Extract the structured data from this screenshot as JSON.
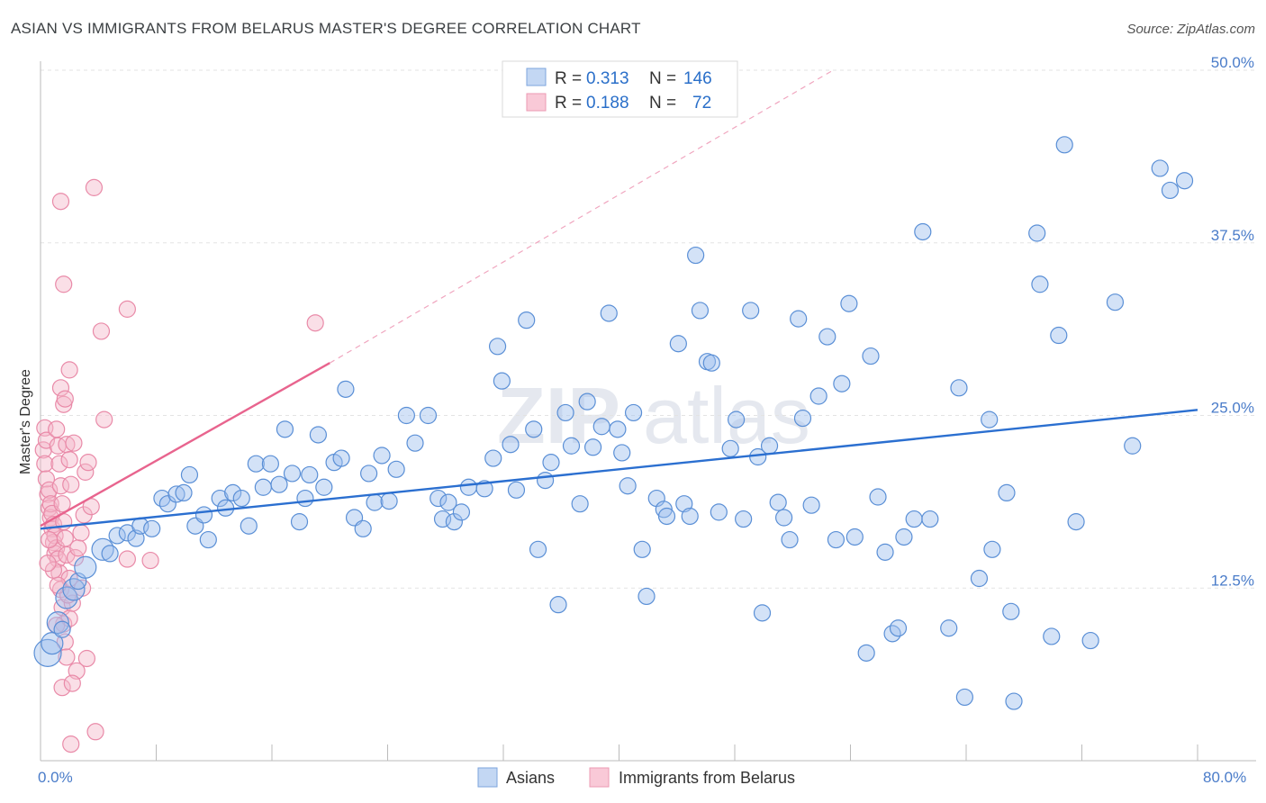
{
  "title": "ASIAN VS IMMIGRANTS FROM BELARUS MASTER'S DEGREE CORRELATION CHART",
  "source": "Source: ZipAtlas.com",
  "watermark": {
    "zip": "ZIP",
    "atlas": "atlas"
  },
  "legend": {
    "r_label": "R =",
    "n_label": "N =",
    "entries": [
      {
        "r": "0.313",
        "n": "146"
      },
      {
        "r": "0.188",
        "n": "72"
      }
    ]
  },
  "bottom_legend": [
    "Asians",
    "Immigrants from Belarus"
  ],
  "chart_data": {
    "type": "scatter",
    "title": "ASIAN VS IMMIGRANTS FROM BELARUS MASTER'S DEGREE CORRELATION CHART",
    "xlabel": "",
    "ylabel": "Master's Degree",
    "xlim": [
      0,
      80
    ],
    "ylim": [
      0,
      50
    ],
    "x_tick_labels": [
      "0.0%",
      "80.0%"
    ],
    "y_ticks": [
      12.5,
      25.0,
      37.5,
      50.0
    ],
    "y_tick_labels": [
      "12.5%",
      "25.0%",
      "37.5%",
      "50.0%"
    ],
    "grid": true,
    "colors": {
      "asians": "#9dbfee",
      "asians_line": "#2b6fd0",
      "belarus": "#f4b8ca",
      "belarus_line": "#e8648e"
    },
    "series": [
      {
        "name": "Asians",
        "r": 0.313,
        "n": 146,
        "trendline": {
          "x": [
            0,
            80
          ],
          "y": [
            16.8,
            25.4
          ]
        },
        "points": [
          [
            0.5,
            7.8,
            3
          ],
          [
            0.8,
            8.5,
            2
          ],
          [
            1.2,
            10.0,
            2
          ],
          [
            1.5,
            9.5,
            1
          ],
          [
            1.8,
            11.8,
            2
          ],
          [
            2.3,
            12.4,
            2
          ],
          [
            2.6,
            13.0,
            1
          ],
          [
            3.1,
            14.0,
            2
          ],
          [
            4.3,
            15.3,
            2
          ],
          [
            4.8,
            15.0,
            1
          ],
          [
            5.3,
            16.3,
            1
          ],
          [
            6.0,
            16.5,
            1
          ],
          [
            6.6,
            16.1,
            1
          ],
          [
            6.9,
            17.0,
            1
          ],
          [
            7.7,
            16.8,
            1
          ],
          [
            8.4,
            19.0,
            1
          ],
          [
            8.8,
            18.6,
            1
          ],
          [
            9.4,
            19.3,
            1
          ],
          [
            9.9,
            19.4,
            1
          ],
          [
            10.3,
            20.7,
            1
          ],
          [
            10.7,
            17.0,
            1
          ],
          [
            11.3,
            17.8,
            1
          ],
          [
            11.6,
            16.0,
            1
          ],
          [
            12.4,
            19.0,
            1
          ],
          [
            12.8,
            18.3,
            1
          ],
          [
            13.3,
            19.4,
            1
          ],
          [
            13.9,
            19.0,
            1
          ],
          [
            14.4,
            17.0,
            1
          ],
          [
            14.9,
            21.5,
            1
          ],
          [
            15.4,
            19.8,
            1
          ],
          [
            15.9,
            21.5,
            1
          ],
          [
            16.5,
            20.0,
            1
          ],
          [
            16.9,
            24.0,
            1
          ],
          [
            17.4,
            20.8,
            1
          ],
          [
            17.9,
            17.3,
            1
          ],
          [
            18.3,
            19.0,
            1
          ],
          [
            18.6,
            20.7,
            1
          ],
          [
            19.2,
            23.6,
            1
          ],
          [
            19.6,
            19.8,
            1
          ],
          [
            20.3,
            21.6,
            1
          ],
          [
            20.8,
            21.9,
            1
          ],
          [
            21.1,
            26.9,
            1
          ],
          [
            21.7,
            17.6,
            1
          ],
          [
            22.3,
            16.8,
            1
          ],
          [
            22.7,
            20.8,
            1
          ],
          [
            23.1,
            18.7,
            1
          ],
          [
            23.6,
            22.1,
            1
          ],
          [
            24.1,
            18.8,
            1
          ],
          [
            24.6,
            21.1,
            1
          ],
          [
            25.3,
            25.0,
            1
          ],
          [
            25.9,
            23.0,
            1
          ],
          [
            26.8,
            25.0,
            1
          ],
          [
            27.5,
            19.0,
            1
          ],
          [
            27.8,
            17.5,
            1
          ],
          [
            28.2,
            18.7,
            1
          ],
          [
            28.6,
            17.3,
            1
          ],
          [
            29.1,
            18.0,
            1
          ],
          [
            29.6,
            19.8,
            1
          ],
          [
            30.7,
            19.7,
            1
          ],
          [
            31.3,
            21.9,
            1
          ],
          [
            31.6,
            30.0,
            1
          ],
          [
            31.9,
            27.5,
            1
          ],
          [
            32.5,
            22.9,
            1
          ],
          [
            32.9,
            19.6,
            1
          ],
          [
            33.6,
            31.9,
            1
          ],
          [
            34.1,
            24.0,
            1
          ],
          [
            34.4,
            15.3,
            1
          ],
          [
            34.9,
            20.3,
            1
          ],
          [
            35.3,
            21.6,
            1
          ],
          [
            35.8,
            11.3,
            1
          ],
          [
            36.3,
            25.2,
            1
          ],
          [
            36.7,
            22.8,
            1
          ],
          [
            37.3,
            18.6,
            1
          ],
          [
            37.8,
            26.0,
            1
          ],
          [
            38.2,
            22.7,
            1
          ],
          [
            38.8,
            24.2,
            1
          ],
          [
            39.3,
            32.4,
            1
          ],
          [
            39.9,
            24.0,
            1
          ],
          [
            40.2,
            22.3,
            1
          ],
          [
            40.6,
            19.9,
            1
          ],
          [
            41.0,
            25.2,
            1
          ],
          [
            41.6,
            15.3,
            1
          ],
          [
            41.9,
            11.9,
            1
          ],
          [
            42.6,
            19.0,
            1
          ],
          [
            43.1,
            18.2,
            1
          ],
          [
            43.3,
            17.7,
            1
          ],
          [
            44.1,
            30.2,
            1
          ],
          [
            44.5,
            18.6,
            1
          ],
          [
            44.9,
            17.7,
            1
          ],
          [
            45.3,
            36.6,
            1
          ],
          [
            45.6,
            32.6,
            1
          ],
          [
            46.1,
            28.9,
            1
          ],
          [
            46.4,
            28.8,
            1
          ],
          [
            46.9,
            18.0,
            1
          ],
          [
            47.7,
            22.6,
            1
          ],
          [
            48.1,
            24.7,
            1
          ],
          [
            48.6,
            17.5,
            1
          ],
          [
            49.1,
            32.6,
            1
          ],
          [
            49.6,
            22.0,
            1
          ],
          [
            49.9,
            10.7,
            1
          ],
          [
            50.4,
            22.8,
            1
          ],
          [
            51.0,
            18.7,
            1
          ],
          [
            51.4,
            17.6,
            1
          ],
          [
            51.8,
            16.0,
            1
          ],
          [
            52.4,
            32.0,
            1
          ],
          [
            52.7,
            24.8,
            1
          ],
          [
            53.3,
            18.5,
            1
          ],
          [
            53.8,
            26.4,
            1
          ],
          [
            54.4,
            30.7,
            1
          ],
          [
            55.0,
            16.0,
            1
          ],
          [
            55.4,
            27.3,
            1
          ],
          [
            55.9,
            33.1,
            1
          ],
          [
            56.3,
            16.2,
            1
          ],
          [
            57.1,
            7.8,
            1
          ],
          [
            57.4,
            29.3,
            1
          ],
          [
            57.9,
            19.1,
            1
          ],
          [
            58.4,
            15.1,
            1
          ],
          [
            58.9,
            9.2,
            1
          ],
          [
            59.3,
            9.6,
            1
          ],
          [
            59.7,
            16.2,
            1
          ],
          [
            60.4,
            17.5,
            1
          ],
          [
            61.0,
            38.3,
            1
          ],
          [
            61.5,
            17.5,
            1
          ],
          [
            62.8,
            9.6,
            1
          ],
          [
            63.5,
            27.0,
            1
          ],
          [
            63.9,
            4.6,
            1
          ],
          [
            64.9,
            13.2,
            1
          ],
          [
            65.6,
            24.7,
            1
          ],
          [
            65.8,
            15.3,
            1
          ],
          [
            66.8,
            19.4,
            1
          ],
          [
            67.1,
            10.8,
            1
          ],
          [
            67.3,
            4.3,
            1
          ],
          [
            68.9,
            38.2,
            1
          ],
          [
            69.1,
            34.5,
            1
          ],
          [
            69.9,
            9.0,
            1
          ],
          [
            70.4,
            30.8,
            1
          ],
          [
            70.8,
            44.6,
            1
          ],
          [
            71.6,
            17.3,
            1
          ],
          [
            72.6,
            8.7,
            1
          ],
          [
            74.3,
            33.2,
            1
          ],
          [
            75.5,
            22.8,
            1
          ],
          [
            77.4,
            42.9,
            1
          ],
          [
            78.1,
            41.3,
            1
          ],
          [
            79.1,
            42.0,
            1
          ]
        ]
      },
      {
        "name": "Immigrants from Belarus",
        "r": 0.188,
        "n": 72,
        "trendline": {
          "x": [
            0,
            20
          ],
          "y": [
            17.0,
            28.8
          ],
          "extended": {
            "x": [
              20,
              54.8
            ],
            "y": [
              28.8,
              50.0
            ]
          }
        },
        "points": [
          [
            0.2,
            22.5,
            1
          ],
          [
            0.3,
            21.5,
            1
          ],
          [
            0.4,
            20.4,
            1
          ],
          [
            0.5,
            19.3,
            1
          ],
          [
            0.6,
            18.3,
            1
          ],
          [
            0.7,
            17.6,
            1
          ],
          [
            0.8,
            16.8,
            1
          ],
          [
            0.9,
            15.8,
            1
          ],
          [
            1.0,
            15.0,
            1
          ],
          [
            0.3,
            24.1,
            1
          ],
          [
            0.4,
            23.2,
            1
          ],
          [
            0.6,
            19.6,
            1
          ],
          [
            0.7,
            18.6,
            1
          ],
          [
            0.8,
            17.9,
            1
          ],
          [
            0.9,
            17.1,
            1
          ],
          [
            1.0,
            16.3,
            1
          ],
          [
            1.1,
            15.4,
            1
          ],
          [
            1.2,
            14.6,
            1
          ],
          [
            1.1,
            24.0,
            1
          ],
          [
            1.2,
            22.8,
            1
          ],
          [
            1.3,
            21.5,
            1
          ],
          [
            1.4,
            19.9,
            1
          ],
          [
            1.5,
            18.6,
            1
          ],
          [
            1.6,
            17.3,
            1
          ],
          [
            1.7,
            16.1,
            1
          ],
          [
            1.8,
            14.9,
            1
          ],
          [
            1.3,
            13.6,
            1
          ],
          [
            1.4,
            12.4,
            1
          ],
          [
            1.5,
            11.1,
            1
          ],
          [
            1.6,
            9.9,
            1
          ],
          [
            1.7,
            8.6,
            1
          ],
          [
            1.8,
            7.5,
            1
          ],
          [
            1.4,
            27.0,
            1
          ],
          [
            1.6,
            25.8,
            1
          ],
          [
            1.7,
            26.2,
            1
          ],
          [
            1.4,
            40.5,
            1
          ],
          [
            1.6,
            34.5,
            1
          ],
          [
            1.8,
            22.9,
            1
          ],
          [
            2.0,
            21.8,
            1
          ],
          [
            2.1,
            20.0,
            1
          ],
          [
            2.0,
            13.2,
            1
          ],
          [
            2.0,
            10.3,
            1
          ],
          [
            2.2,
            11.4,
            1
          ],
          [
            2.1,
            1.2,
            1
          ],
          [
            2.0,
            28.3,
            1
          ],
          [
            2.4,
            14.7,
            1
          ],
          [
            2.5,
            6.5,
            1
          ],
          [
            2.6,
            15.4,
            1
          ],
          [
            2.8,
            16.5,
            1
          ],
          [
            2.9,
            12.5,
            1
          ],
          [
            3.0,
            17.8,
            1
          ],
          [
            3.1,
            20.9,
            1
          ],
          [
            3.3,
            21.6,
            1
          ],
          [
            3.2,
            7.4,
            1
          ],
          [
            3.5,
            18.4,
            1
          ],
          [
            1.5,
            5.3,
            1
          ],
          [
            2.2,
            5.6,
            1
          ],
          [
            3.7,
            41.5,
            1
          ],
          [
            3.8,
            2.1,
            1
          ],
          [
            4.2,
            31.1,
            1
          ],
          [
            4.4,
            24.7,
            1
          ],
          [
            6.0,
            14.6,
            1
          ],
          [
            6.0,
            32.7,
            1
          ],
          [
            7.6,
            14.5,
            1
          ],
          [
            19.0,
            31.7,
            1
          ],
          [
            1.9,
            12.0,
            1
          ],
          [
            2.3,
            23.0,
            1
          ],
          [
            1.2,
            12.7,
            1
          ],
          [
            1.1,
            9.8,
            1
          ],
          [
            0.9,
            13.8,
            1
          ],
          [
            0.6,
            16.0,
            1
          ],
          [
            0.5,
            14.3,
            1
          ]
        ]
      }
    ]
  }
}
